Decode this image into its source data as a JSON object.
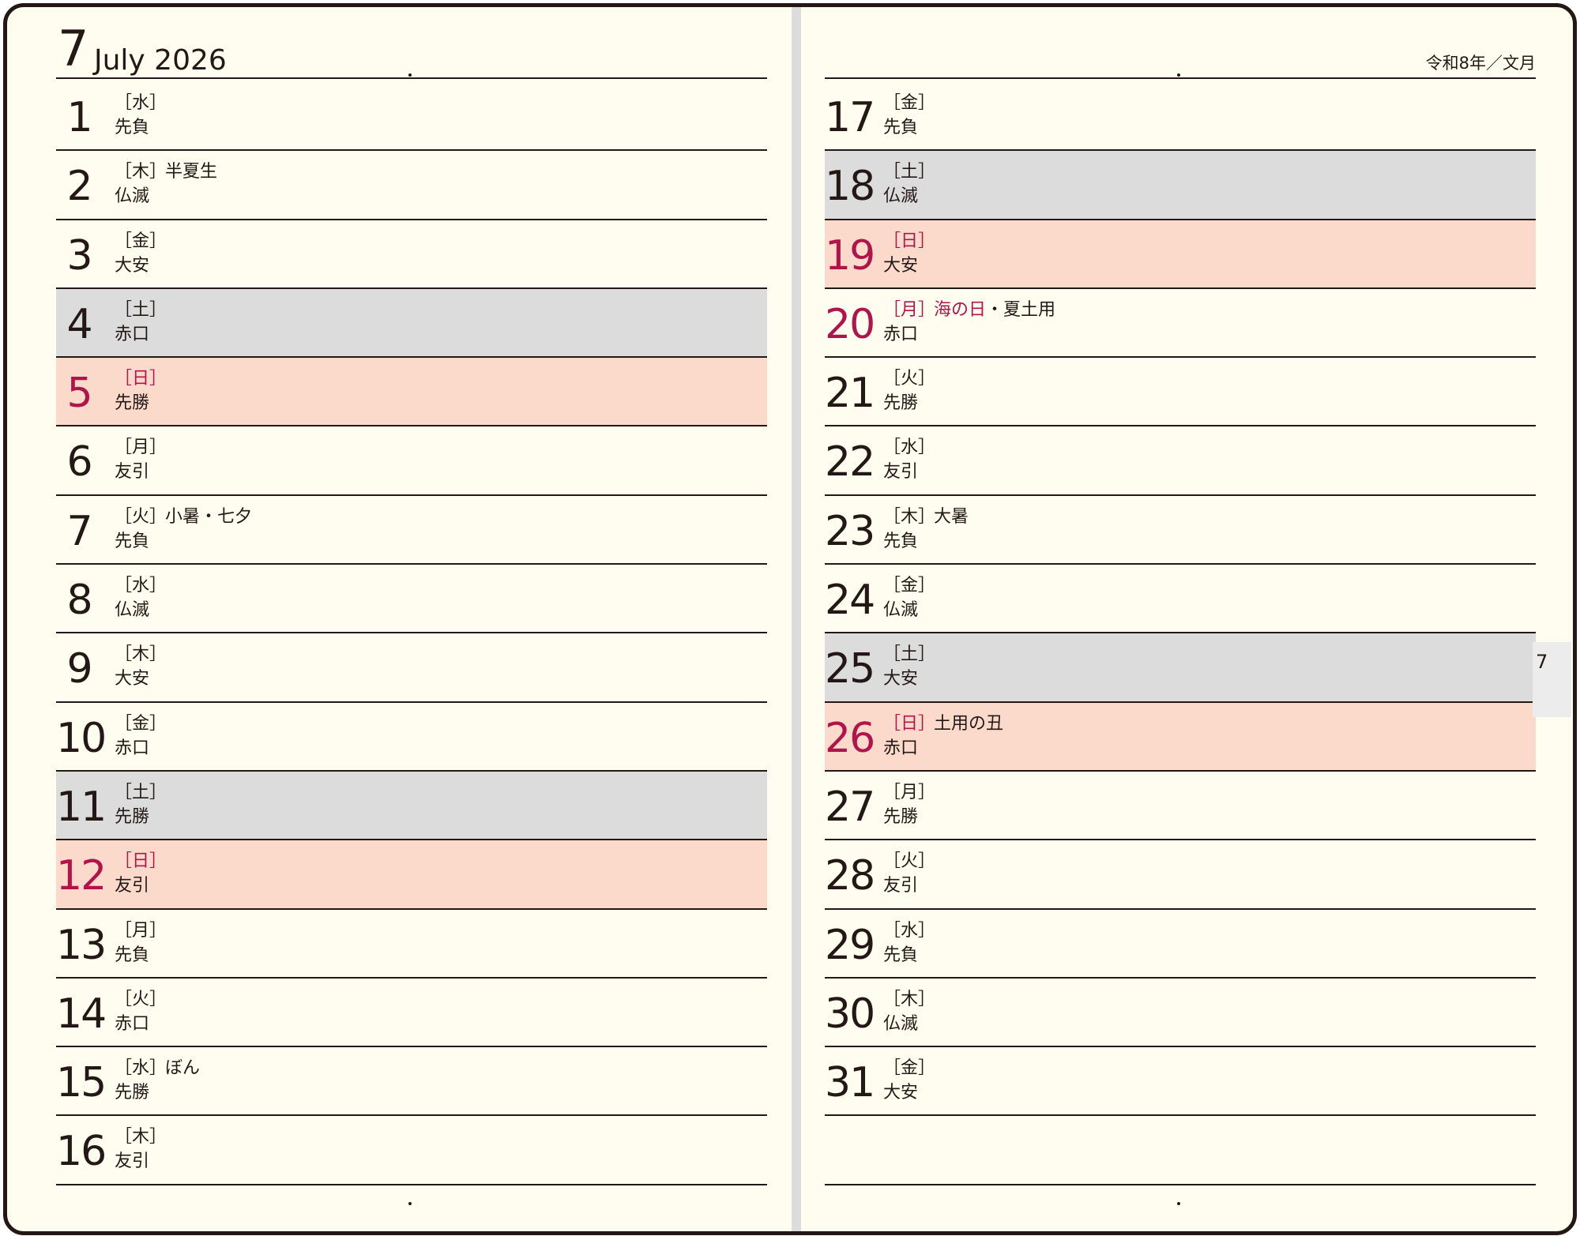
{
  "header": {
    "month_number": "7",
    "month_label": "July 2026",
    "era_label": "令和8年／文月"
  },
  "index_tab": "7",
  "left_days": [
    {
      "day": "1",
      "weekday": "［水］",
      "rokuyo": "先負",
      "events": [],
      "type": "normal"
    },
    {
      "day": "2",
      "weekday": "［木］",
      "rokuyo": "仏滅",
      "events": [
        {
          "text": "半夏生",
          "red": false
        }
      ],
      "type": "normal"
    },
    {
      "day": "3",
      "weekday": "［金］",
      "rokuyo": "大安",
      "events": [],
      "type": "normal"
    },
    {
      "day": "4",
      "weekday": "［土］",
      "rokuyo": "赤口",
      "events": [],
      "type": "sat"
    },
    {
      "day": "5",
      "weekday": "［日］",
      "rokuyo": "先勝",
      "events": [],
      "type": "sun"
    },
    {
      "day": "6",
      "weekday": "［月］",
      "rokuyo": "友引",
      "events": [],
      "type": "normal"
    },
    {
      "day": "7",
      "weekday": "［火］",
      "rokuyo": "先負",
      "events": [
        {
          "text": "小暑・七夕",
          "red": false
        }
      ],
      "type": "normal"
    },
    {
      "day": "8",
      "weekday": "［水］",
      "rokuyo": "仏滅",
      "events": [],
      "type": "normal"
    },
    {
      "day": "9",
      "weekday": "［木］",
      "rokuyo": "大安",
      "events": [],
      "type": "normal"
    },
    {
      "day": "10",
      "weekday": "［金］",
      "rokuyo": "赤口",
      "events": [],
      "type": "normal"
    },
    {
      "day": "11",
      "weekday": "［土］",
      "rokuyo": "先勝",
      "events": [],
      "type": "sat"
    },
    {
      "day": "12",
      "weekday": "［日］",
      "rokuyo": "友引",
      "events": [],
      "type": "sun"
    },
    {
      "day": "13",
      "weekday": "［月］",
      "rokuyo": "先負",
      "events": [],
      "type": "normal"
    },
    {
      "day": "14",
      "weekday": "［火］",
      "rokuyo": "赤口",
      "events": [],
      "type": "normal"
    },
    {
      "day": "15",
      "weekday": "［水］",
      "rokuyo": "先勝",
      "events": [
        {
          "text": "ぼん",
          "red": false
        }
      ],
      "type": "normal"
    },
    {
      "day": "16",
      "weekday": "［木］",
      "rokuyo": "友引",
      "events": [],
      "type": "normal"
    }
  ],
  "right_days": [
    {
      "day": "17",
      "weekday": "［金］",
      "rokuyo": "先負",
      "events": [],
      "type": "normal"
    },
    {
      "day": "18",
      "weekday": "［土］",
      "rokuyo": "仏滅",
      "events": [],
      "type": "sat"
    },
    {
      "day": "19",
      "weekday": "［日］",
      "rokuyo": "大安",
      "events": [],
      "type": "sun"
    },
    {
      "day": "20",
      "weekday": "［月］",
      "rokuyo": "赤口",
      "events": [
        {
          "text": "海の日",
          "red": true
        },
        {
          "text": "・夏土用",
          "red": false
        }
      ],
      "type": "holiday"
    },
    {
      "day": "21",
      "weekday": "［火］",
      "rokuyo": "先勝",
      "events": [],
      "type": "normal"
    },
    {
      "day": "22",
      "weekday": "［水］",
      "rokuyo": "友引",
      "events": [],
      "type": "normal"
    },
    {
      "day": "23",
      "weekday": "［木］",
      "rokuyo": "先負",
      "events": [
        {
          "text": "大暑",
          "red": false
        }
      ],
      "type": "normal"
    },
    {
      "day": "24",
      "weekday": "［金］",
      "rokuyo": "仏滅",
      "events": [],
      "type": "normal"
    },
    {
      "day": "25",
      "weekday": "［土］",
      "rokuyo": "大安",
      "events": [],
      "type": "sat"
    },
    {
      "day": "26",
      "weekday": "［日］",
      "rokuyo": "赤口",
      "events": [
        {
          "text": "土用の丑",
          "red": false
        }
      ],
      "type": "sun"
    },
    {
      "day": "27",
      "weekday": "［月］",
      "rokuyo": "先勝",
      "events": [],
      "type": "normal"
    },
    {
      "day": "28",
      "weekday": "［火］",
      "rokuyo": "友引",
      "events": [],
      "type": "normal"
    },
    {
      "day": "29",
      "weekday": "［水］",
      "rokuyo": "先負",
      "events": [],
      "type": "normal"
    },
    {
      "day": "30",
      "weekday": "［木］",
      "rokuyo": "仏滅",
      "events": [],
      "type": "normal"
    },
    {
      "day": "31",
      "weekday": "［金］",
      "rokuyo": "大安",
      "events": [],
      "type": "normal"
    }
  ]
}
